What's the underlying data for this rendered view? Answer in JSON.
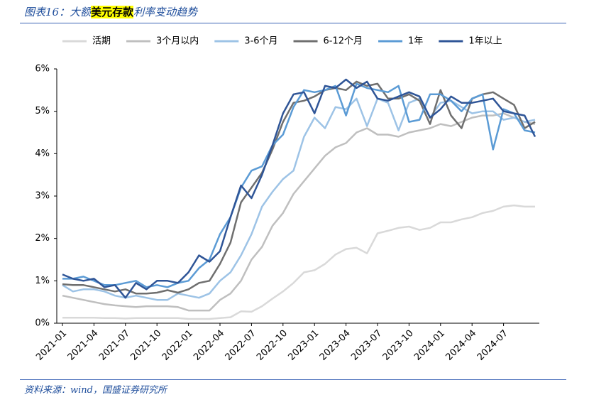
{
  "chart_data": {
    "type": "line",
    "title_parts": [
      "图表16：大额",
      "美元存款",
      "利率变动趋势"
    ],
    "source": "资料来源：wind，国盛证券研究所",
    "categories": [
      "2021-01",
      null,
      null,
      "2021-04",
      null,
      null,
      "2021-07",
      null,
      null,
      "2021-10",
      null,
      null,
      "2022-01",
      null,
      null,
      "2022-04",
      null,
      null,
      "2022-07",
      null,
      null,
      "2022-10",
      null,
      null,
      "2023-01",
      null,
      null,
      "2023-04",
      null,
      null,
      "2023-07",
      null,
      null,
      "2023-10",
      null,
      null,
      "2024-01",
      null,
      null,
      "2024-04",
      null,
      null,
      "2024-07",
      null,
      null,
      null
    ],
    "ylim": [
      0,
      6
    ],
    "yticks": [
      {
        "value": 0,
        "label": "0%"
      },
      {
        "value": 1,
        "label": "1%"
      },
      {
        "value": 2,
        "label": "2%"
      },
      {
        "value": 3,
        "label": "3%"
      },
      {
        "value": 4,
        "label": "4%"
      },
      {
        "value": 5,
        "label": "5%"
      },
      {
        "value": 6,
        "label": "6%"
      }
    ],
    "legend": "top",
    "series": [
      {
        "name": "活期",
        "color": "#d9d9d9",
        "values": [
          0.13,
          0.13,
          0.13,
          0.13,
          0.12,
          0.12,
          0.11,
          0.12,
          0.12,
          0.12,
          0.12,
          0.12,
          0.1,
          0.1,
          0.1,
          0.12,
          0.14,
          0.28,
          0.27,
          0.4,
          0.58,
          0.75,
          0.95,
          1.2,
          1.25,
          1.4,
          1.62,
          1.75,
          1.78,
          1.65,
          2.12,
          2.18,
          2.25,
          2.28,
          2.2,
          2.25,
          2.38,
          2.38,
          2.45,
          2.5,
          2.6,
          2.65,
          2.75,
          2.78,
          2.75,
          2.75
        ]
      },
      {
        "name": "3个月以内",
        "color": "#bfbfbf",
        "values": [
          0.65,
          0.6,
          0.55,
          0.5,
          0.45,
          0.42,
          0.4,
          0.38,
          0.4,
          0.4,
          0.4,
          0.38,
          0.3,
          0.3,
          0.3,
          0.55,
          0.7,
          1.0,
          1.5,
          1.8,
          2.3,
          2.6,
          3.05,
          3.35,
          3.65,
          3.95,
          4.15,
          4.25,
          4.5,
          4.6,
          4.45,
          4.45,
          4.4,
          4.5,
          4.55,
          4.6,
          4.7,
          4.65,
          4.75,
          4.85,
          4.9,
          4.9,
          4.95,
          4.85,
          4.75,
          4.7
        ]
      },
      {
        "name": "3-6个月",
        "color": "#9dc3e6",
        "values": [
          0.9,
          0.75,
          0.8,
          0.8,
          0.75,
          0.65,
          0.6,
          0.65,
          0.6,
          0.55,
          0.55,
          0.7,
          0.65,
          0.6,
          0.7,
          1.0,
          1.2,
          1.6,
          2.1,
          2.75,
          3.1,
          3.4,
          3.6,
          4.4,
          4.85,
          4.6,
          5.1,
          5.05,
          5.3,
          4.65,
          5.3,
          5.2,
          4.55,
          5.2,
          5.3,
          4.85,
          5.2,
          5.25,
          5.1,
          4.95,
          5.0,
          5.0,
          4.8,
          4.85,
          4.75,
          4.8
        ]
      },
      {
        "name": "6-12个月",
        "color": "#6f6f6f",
        "values": [
          0.92,
          0.9,
          0.9,
          0.85,
          0.8,
          0.75,
          0.8,
          0.7,
          0.7,
          0.72,
          0.78,
          0.72,
          0.8,
          0.95,
          1.0,
          1.4,
          1.9,
          2.85,
          3.2,
          3.55,
          4.1,
          4.75,
          5.2,
          5.25,
          5.35,
          5.5,
          5.55,
          5.5,
          5.7,
          5.6,
          5.65,
          5.3,
          5.3,
          5.4,
          5.25,
          4.7,
          5.5,
          4.9,
          4.6,
          5.3,
          5.4,
          5.45,
          5.3,
          5.15,
          4.6,
          4.75
        ]
      },
      {
        "name": "1年",
        "color": "#5b9bd5",
        "values": [
          1.05,
          1.05,
          1.1,
          1.0,
          0.9,
          0.9,
          0.95,
          1.0,
          0.85,
          0.9,
          0.85,
          0.95,
          1.0,
          1.3,
          1.5,
          2.1,
          2.5,
          3.2,
          3.6,
          3.7,
          4.2,
          4.45,
          5.1,
          5.5,
          5.45,
          5.5,
          5.6,
          4.9,
          5.65,
          5.55,
          5.5,
          5.45,
          5.6,
          4.75,
          4.8,
          5.4,
          5.4,
          5.25,
          5.0,
          5.3,
          5.4,
          4.1,
          5.05,
          4.95,
          4.55,
          4.5
        ]
      },
      {
        "name": "1年以上",
        "color": "#2f5597",
        "values": [
          1.15,
          1.05,
          1.0,
          1.05,
          0.85,
          0.9,
          0.6,
          0.95,
          0.8,
          1.0,
          1.0,
          0.95,
          1.2,
          1.6,
          1.45,
          1.7,
          2.5,
          3.25,
          2.95,
          3.5,
          4.2,
          4.95,
          5.4,
          5.45,
          4.95,
          5.6,
          5.55,
          5.75,
          5.55,
          5.7,
          5.3,
          5.25,
          5.35,
          5.45,
          5.35,
          4.85,
          5.05,
          5.35,
          5.2,
          5.2,
          5.25,
          5.3,
          5.0,
          4.95,
          4.9,
          4.4
        ]
      }
    ]
  }
}
